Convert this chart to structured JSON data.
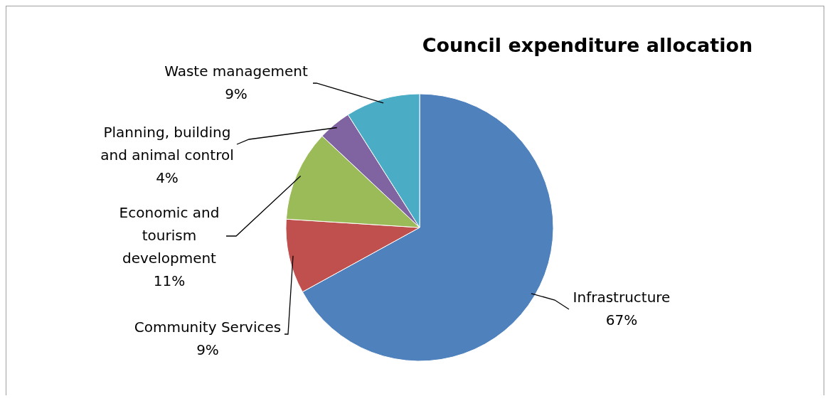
{
  "chart_data": {
    "type": "pie",
    "title": "Council expenditure allocation",
    "categories": [
      "Infrastructure",
      "Community Services",
      "Economic and tourism development",
      "Planning, building and animal control",
      "Waste management"
    ],
    "values": [
      67,
      9,
      11,
      4,
      9
    ],
    "value_labels": [
      "67%",
      "9%",
      "11%",
      "4%",
      "9%"
    ],
    "colors": [
      "#4f81bd",
      "#c0504d",
      "#9bbb59",
      "#8064a2",
      "#4bacc6"
    ]
  }
}
